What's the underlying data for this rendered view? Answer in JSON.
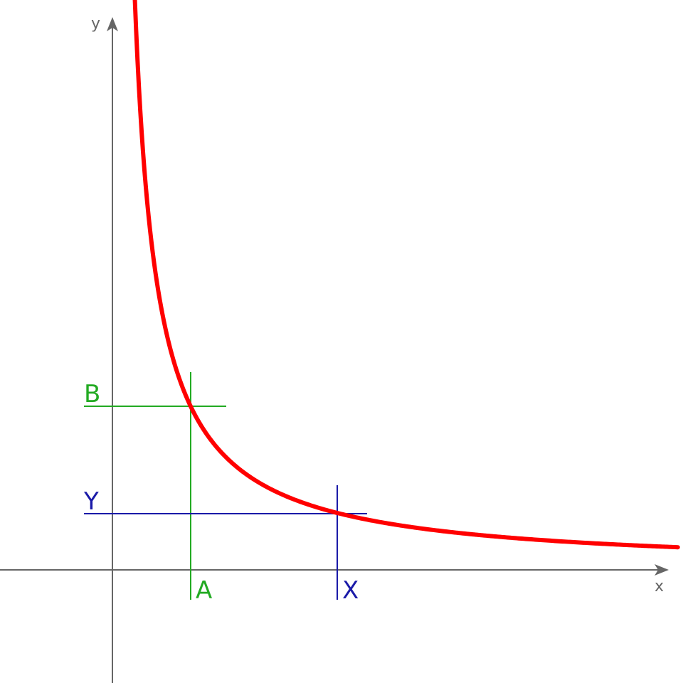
{
  "axes": {
    "x_label": "x",
    "y_label": "y",
    "color": "#666666",
    "x_range": [
      0,
      5.03
    ],
    "y_range": [
      -1,
      10
    ]
  },
  "curve": {
    "equation": "y = 1/x",
    "color": "#ff0000",
    "x_start": 0.1,
    "x_end": 5.03
  },
  "point_ab": {
    "x_label": "A",
    "y_label": "B",
    "x": 0.7,
    "y": 1.43,
    "color": "#22aa22"
  },
  "point_xy": {
    "x_label": "X",
    "y_label": "Y",
    "x": 2.0,
    "y": 0.5,
    "color": "#1a1aa8"
  }
}
